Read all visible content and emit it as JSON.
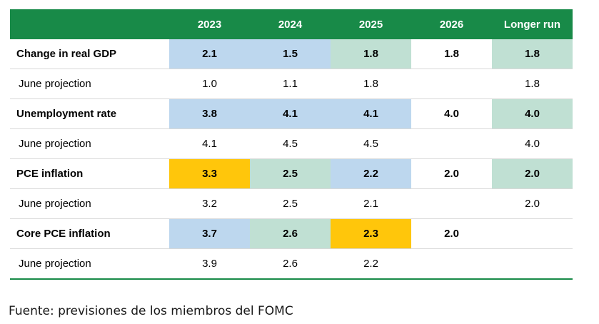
{
  "table": {
    "columns": [
      "",
      "2023",
      "2024",
      "2025",
      "2026",
      "Longer run"
    ],
    "rows": [
      {
        "label": "Change in real GDP",
        "main": true,
        "values": [
          "2.1",
          "1.5",
          "1.8",
          "1.8",
          "1.8"
        ],
        "shading": [
          "blue",
          "blue",
          "green",
          "none",
          "green"
        ]
      },
      {
        "label": "June projection",
        "main": false,
        "values": [
          "1.0",
          "1.1",
          "1.8",
          "",
          "1.8"
        ],
        "shading": [
          "none",
          "none",
          "none",
          "none",
          "none"
        ]
      },
      {
        "label": "Unemployment rate",
        "main": true,
        "values": [
          "3.8",
          "4.1",
          "4.1",
          "4.0",
          "4.0"
        ],
        "shading": [
          "blue",
          "blue",
          "blue",
          "none",
          "green"
        ]
      },
      {
        "label": "June projection",
        "main": false,
        "values": [
          "4.1",
          "4.5",
          "4.5",
          "",
          "4.0"
        ],
        "shading": [
          "none",
          "none",
          "none",
          "none",
          "none"
        ]
      },
      {
        "label": "PCE inflation",
        "main": true,
        "values": [
          "3.3",
          "2.5",
          "2.2",
          "2.0",
          "2.0"
        ],
        "shading": [
          "yellow",
          "green",
          "blue",
          "none",
          "green"
        ]
      },
      {
        "label": "June projection",
        "main": false,
        "values": [
          "3.2",
          "2.5",
          "2.1",
          "",
          "2.0"
        ],
        "shading": [
          "none",
          "none",
          "none",
          "none",
          "none"
        ]
      },
      {
        "label": "Core PCE inflation",
        "main": true,
        "values": [
          "3.7",
          "2.6",
          "2.3",
          "2.0",
          ""
        ],
        "shading": [
          "blue",
          "green",
          "yellow",
          "none",
          "none"
        ]
      },
      {
        "label": "June projection",
        "main": false,
        "values": [
          "3.9",
          "2.6",
          "2.2",
          "",
          ""
        ],
        "shading": [
          "none",
          "none",
          "none",
          "none",
          "none"
        ]
      }
    ]
  },
  "chart_data": {
    "type": "table",
    "title": "",
    "columns": [
      "2023",
      "2024",
      "2025",
      "2026",
      "Longer run"
    ],
    "rows": [
      {
        "name": "Change in real GDP",
        "values": [
          2.1,
          1.5,
          1.8,
          1.8,
          1.8
        ]
      },
      {
        "name": "Change in real GDP — June projection",
        "values": [
          1.0,
          1.1,
          1.8,
          null,
          1.8
        ]
      },
      {
        "name": "Unemployment rate",
        "values": [
          3.8,
          4.1,
          4.1,
          4.0,
          4.0
        ]
      },
      {
        "name": "Unemployment rate — June projection",
        "values": [
          4.1,
          4.5,
          4.5,
          null,
          4.0
        ]
      },
      {
        "name": "PCE inflation",
        "values": [
          3.3,
          2.5,
          2.2,
          2.0,
          2.0
        ]
      },
      {
        "name": "PCE inflation — June projection",
        "values": [
          3.2,
          2.5,
          2.1,
          null,
          2.0
        ]
      },
      {
        "name": "Core PCE inflation",
        "values": [
          3.7,
          2.6,
          2.3,
          2.0,
          null
        ]
      },
      {
        "name": "Core PCE inflation — June projection",
        "values": [
          3.9,
          2.6,
          2.2,
          null,
          null
        ]
      }
    ]
  },
  "colors": {
    "header": "#188a48",
    "blue": "#bdd7ee",
    "green": "#c0e0d3",
    "yellow": "#ffc60b",
    "none": "#ffffff"
  },
  "source": "Fuente: previsiones de los miembros del FOMC"
}
